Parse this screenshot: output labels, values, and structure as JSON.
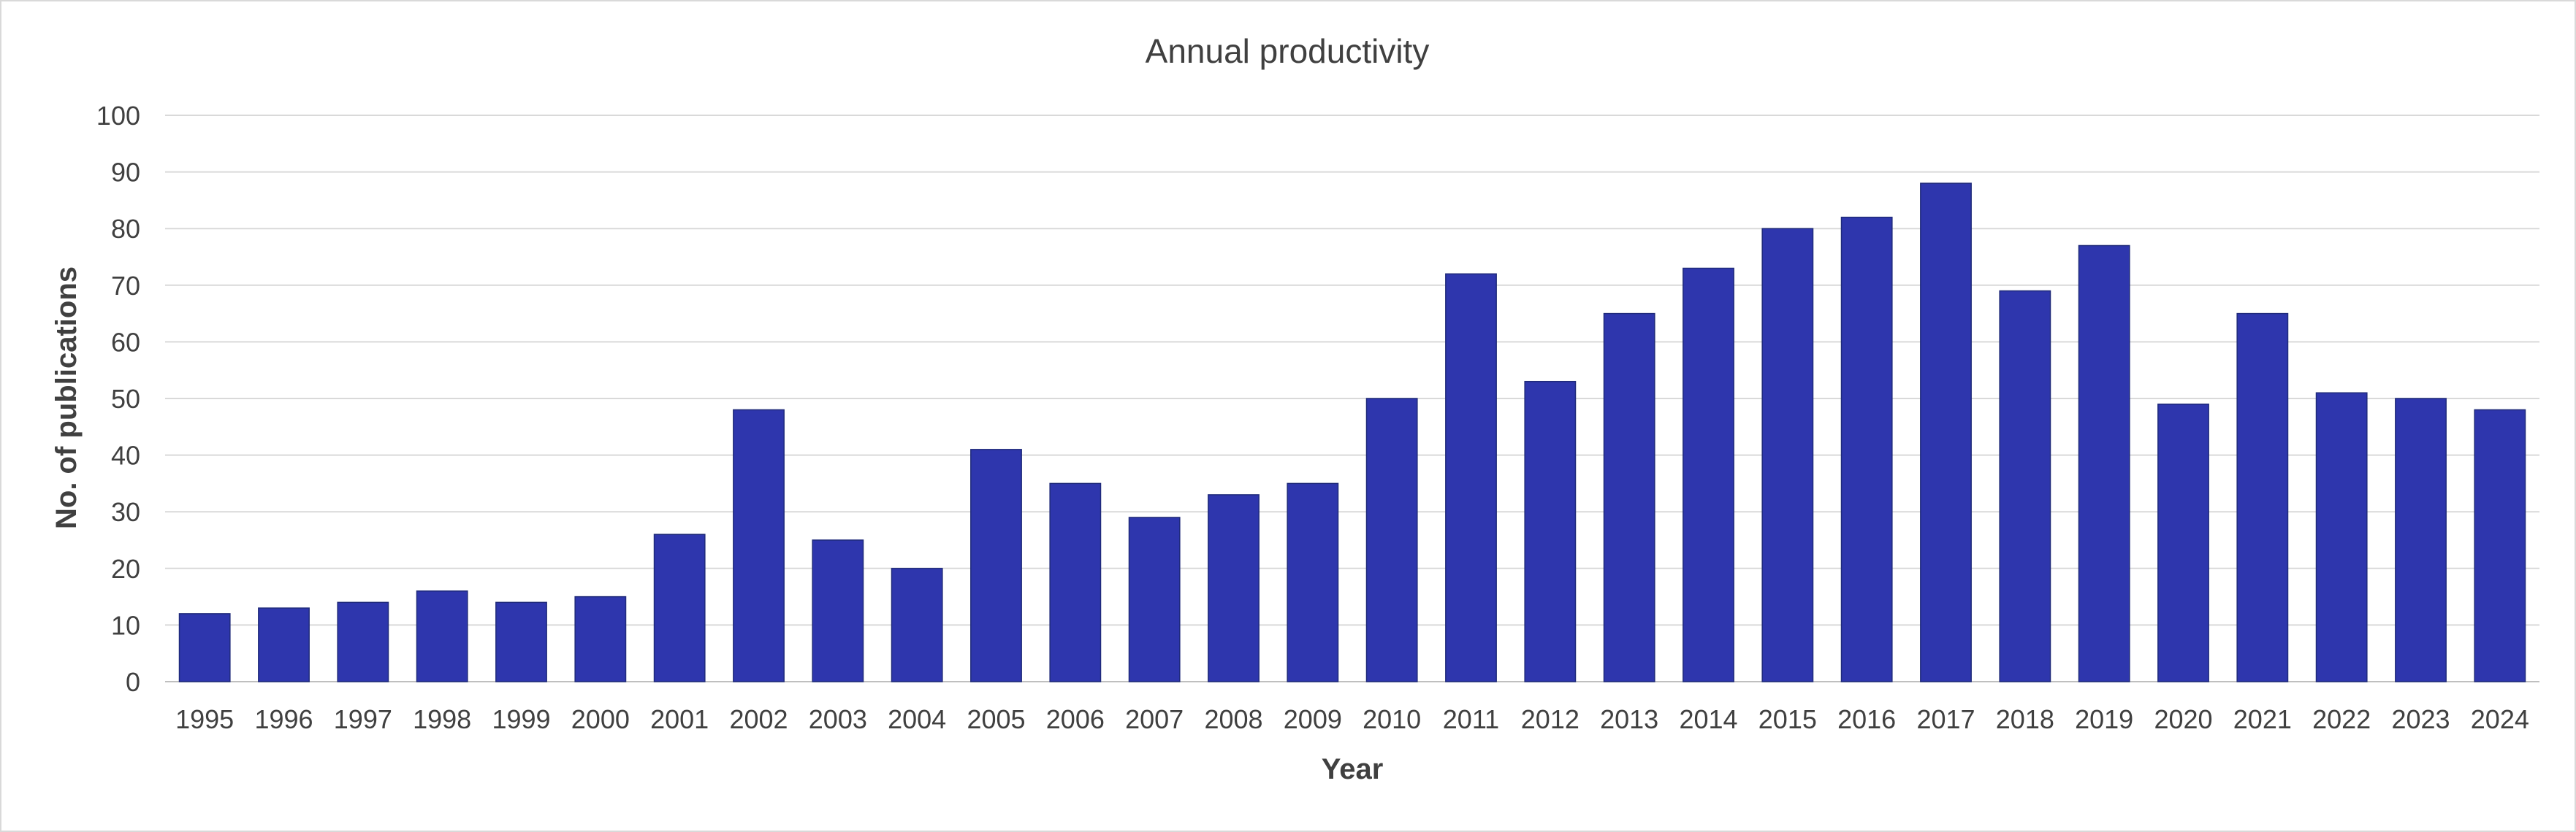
{
  "chart_data": {
    "type": "bar",
    "title": "Annual productivity",
    "xlabel": "Year",
    "ylabel": "No. of publications",
    "categories": [
      "1995",
      "1996",
      "1997",
      "1998",
      "1999",
      "2000",
      "2001",
      "2002",
      "2003",
      "2004",
      "2005",
      "2006",
      "2007",
      "2008",
      "2009",
      "2010",
      "2011",
      "2012",
      "2013",
      "2014",
      "2015",
      "2016",
      "2017",
      "2018",
      "2019",
      "2020",
      "2021",
      "2022",
      "2023",
      "2024"
    ],
    "values": [
      12,
      13,
      14,
      16,
      14,
      15,
      26,
      48,
      25,
      20,
      41,
      35,
      29,
      33,
      35,
      50,
      72,
      53,
      65,
      73,
      80,
      82,
      88,
      69,
      77,
      49,
      65,
      51,
      50,
      48
    ],
    "ylim": [
      0,
      100
    ],
    "yticks": [
      0,
      10,
      20,
      30,
      40,
      50,
      60,
      70,
      80,
      90,
      100
    ],
    "grid": true,
    "bar_color": "#2e36ad",
    "legend": "none"
  }
}
